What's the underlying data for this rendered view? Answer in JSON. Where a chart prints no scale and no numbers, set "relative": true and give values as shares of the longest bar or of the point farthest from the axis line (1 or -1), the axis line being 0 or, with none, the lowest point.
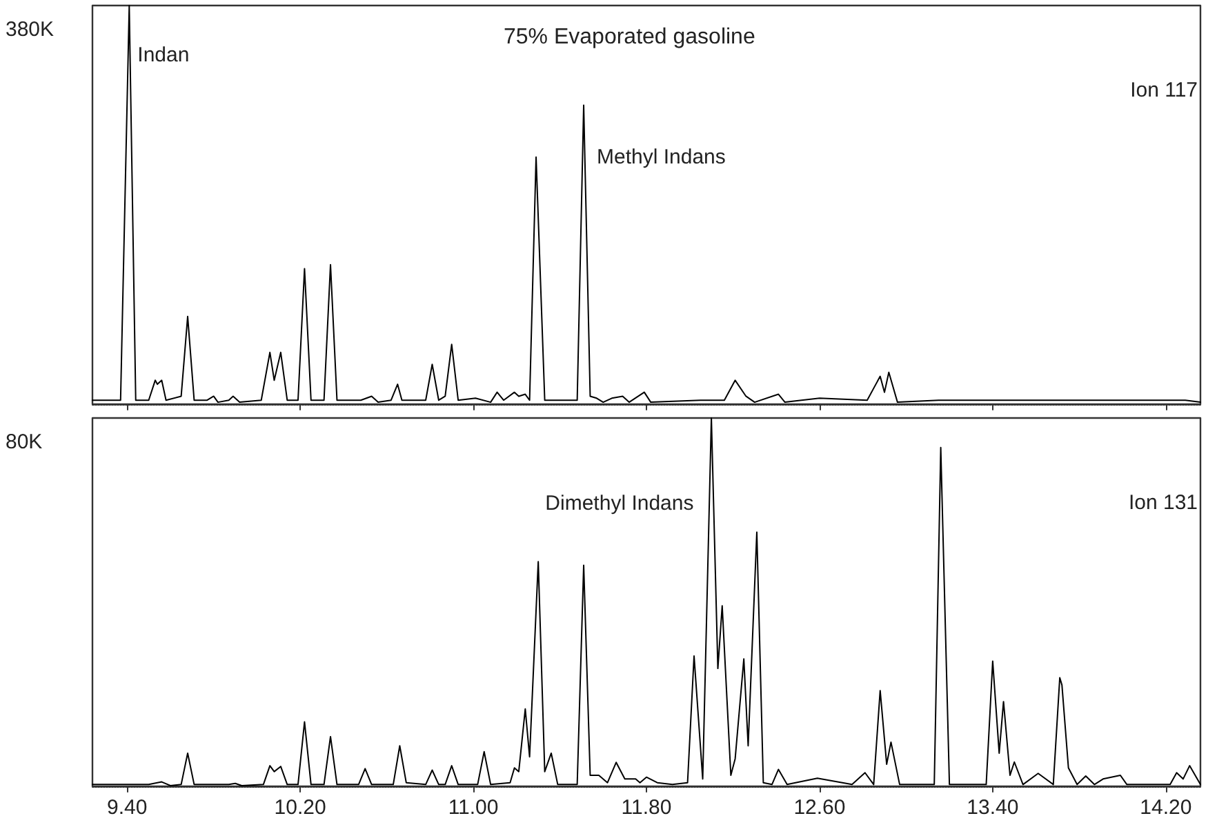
{
  "chart_data": [
    {
      "type": "line",
      "title": "75% Evaporated gasoline",
      "relative": true,
      "grid": false,
      "marker": "none",
      "line_style": "solid",
      "tick_labels": false,
      "xlim": [
        9.24,
        14.36
      ],
      "xticks": [
        {
          "value": 9.4,
          "label": null
        },
        {
          "value": 10.2,
          "label": null
        },
        {
          "value": 11.0,
          "label": null
        },
        {
          "value": 11.8,
          "label": null
        },
        {
          "value": 12.6,
          "label": null
        },
        {
          "value": 13.4,
          "label": null
        },
        {
          "value": 14.2,
          "label": null
        }
      ],
      "annotations": [
        "380K",
        "Ion 117",
        {
          "text": "Indan",
          "x": 9.41,
          "y": 1.0
        },
        {
          "text": "Methyl Indans",
          "x": 11.29,
          "y": 0.62
        }
      ],
      "series": [
        {
          "color": "#000000",
          "x": [
            9.24,
            9.37,
            9.41,
            9.44,
            9.5,
            9.53,
            9.54,
            9.56,
            9.58,
            9.65,
            9.68,
            9.71,
            9.77,
            9.8,
            9.82,
            9.87,
            9.89,
            9.92,
            10.02,
            10.06,
            10.08,
            10.11,
            10.14,
            10.19,
            10.22,
            10.25,
            10.31,
            10.34,
            10.37,
            10.48,
            10.53,
            10.56,
            10.62,
            10.65,
            10.67,
            10.78,
            10.81,
            10.84,
            10.87,
            10.9,
            10.93,
            11.01,
            11.08,
            11.11,
            11.14,
            11.19,
            11.21,
            11.24,
            11.26,
            11.29,
            11.33,
            11.38,
            11.48,
            11.51,
            11.54,
            11.57,
            11.6,
            11.64,
            11.69,
            11.72,
            11.79,
            11.82,
            12.05,
            12.16,
            12.21,
            12.26,
            12.3,
            12.41,
            12.44,
            12.6,
            12.82,
            12.88,
            12.9,
            12.92,
            12.96,
            13.15,
            13.45,
            13.59,
            13.78,
            14.29,
            14.36
          ],
          "values": [
            0.01,
            0.01,
            1.0,
            0.01,
            0.01,
            0.06,
            0.05,
            0.06,
            0.01,
            0.02,
            0.22,
            0.01,
            0.01,
            0.02,
            0.005,
            0.01,
            0.02,
            0.005,
            0.01,
            0.13,
            0.06,
            0.13,
            0.01,
            0.01,
            0.34,
            0.01,
            0.01,
            0.35,
            0.01,
            0.01,
            0.02,
            0.005,
            0.01,
            0.05,
            0.01,
            0.01,
            0.1,
            0.01,
            0.02,
            0.15,
            0.01,
            0.015,
            0.005,
            0.03,
            0.01,
            0.03,
            0.02,
            0.025,
            0.01,
            0.62,
            0.01,
            0.01,
            0.01,
            0.75,
            0.02,
            0.015,
            0.005,
            0.015,
            0.02,
            0.005,
            0.03,
            0.005,
            0.01,
            0.01,
            0.06,
            0.02,
            0.005,
            0.025,
            0.005,
            0.015,
            0.01,
            0.07,
            0.03,
            0.08,
            0.005,
            0.01,
            0.01,
            0.01,
            0.01,
            0.01,
            0.005
          ]
        }
      ]
    },
    {
      "type": "line",
      "relative": true,
      "grid": false,
      "marker": "none",
      "line_style": "solid",
      "tick_labels": "x",
      "xlim": [
        9.24,
        14.36
      ],
      "xticks": [
        {
          "value": 9.4,
          "label": "9.40"
        },
        {
          "value": 10.2,
          "label": "10.20"
        },
        {
          "value": 11.0,
          "label": "11.00"
        },
        {
          "value": 11.8,
          "label": "11.80"
        },
        {
          "value": 12.6,
          "label": "12.60"
        },
        {
          "value": 13.4,
          "label": "13.40"
        },
        {
          "value": 14.2,
          "label": "14.20"
        }
      ],
      "annotations": [
        "80K",
        "Ion 131",
        "Dimethyl Indans"
      ],
      "series": [
        {
          "color": "#000000",
          "x": [
            9.24,
            9.5,
            9.56,
            9.6,
            9.65,
            9.68,
            9.71,
            9.87,
            9.9,
            9.93,
            10.03,
            10.06,
            10.08,
            10.11,
            10.14,
            10.19,
            10.22,
            10.25,
            10.31,
            10.34,
            10.37,
            10.47,
            10.5,
            10.53,
            10.63,
            10.66,
            10.69,
            10.78,
            10.81,
            10.84,
            10.87,
            10.9,
            10.93,
            11.02,
            11.05,
            11.08,
            11.17,
            11.19,
            11.21,
            11.24,
            11.26,
            11.3,
            11.33,
            11.36,
            11.39,
            11.48,
            11.51,
            11.54,
            11.58,
            11.62,
            11.66,
            11.7,
            11.75,
            11.77,
            11.8,
            11.85,
            11.92,
            11.99,
            12.02,
            12.06,
            12.1,
            12.13,
            12.15,
            12.19,
            12.21,
            12.25,
            12.27,
            12.31,
            12.34,
            12.38,
            12.41,
            12.45,
            12.59,
            12.75,
            12.81,
            12.85,
            12.88,
            12.91,
            12.93,
            12.97,
            13.13,
            13.16,
            13.2,
            13.37,
            13.4,
            13.43,
            13.45,
            13.48,
            13.5,
            13.54,
            13.61,
            13.68,
            13.71,
            13.72,
            13.75,
            13.79,
            13.83,
            13.87,
            13.91,
            13.99,
            14.02,
            14.22,
            14.25,
            14.28,
            14.31,
            14.36
          ],
          "values": [
            0.005,
            0.005,
            0.012,
            0.002,
            0.005,
            0.09,
            0.005,
            0.005,
            0.008,
            0.002,
            0.005,
            0.056,
            0.04,
            0.054,
            0.005,
            0.005,
            0.175,
            0.005,
            0.005,
            0.135,
            0.005,
            0.005,
            0.048,
            0.005,
            0.005,
            0.11,
            0.01,
            0.005,
            0.044,
            0.005,
            0.005,
            0.056,
            0.005,
            0.005,
            0.094,
            0.005,
            0.01,
            0.05,
            0.04,
            0.21,
            0.08,
            0.61,
            0.04,
            0.09,
            0.005,
            0.005,
            0.6,
            0.03,
            0.03,
            0.01,
            0.065,
            0.02,
            0.02,
            0.01,
            0.025,
            0.01,
            0.005,
            0.01,
            0.354,
            0.02,
            1.0,
            0.32,
            0.49,
            0.03,
            0.075,
            0.346,
            0.11,
            0.69,
            0.01,
            0.005,
            0.046,
            0.005,
            0.022,
            0.005,
            0.037,
            0.005,
            0.26,
            0.06,
            0.12,
            0.005,
            0.005,
            0.92,
            0.005,
            0.005,
            0.34,
            0.09,
            0.23,
            0.03,
            0.066,
            0.005,
            0.035,
            0.005,
            0.295,
            0.275,
            0.05,
            0.005,
            0.028,
            0.005,
            0.02,
            0.03,
            0.005,
            0.005,
            0.037,
            0.02,
            0.056,
            0.005
          ]
        }
      ]
    }
  ]
}
